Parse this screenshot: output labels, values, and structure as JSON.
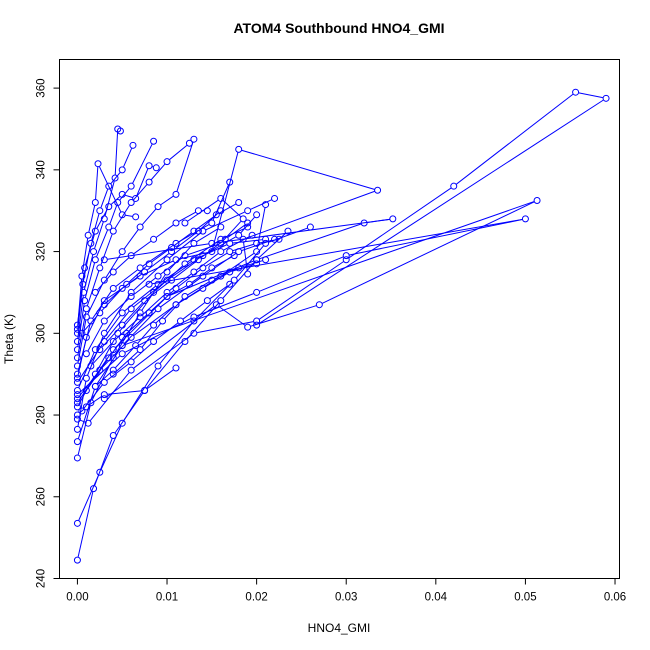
{
  "chart_data": {
    "type": "line",
    "title": "ATOM4 Southbound HNO4_GMI",
    "xlabel": "HNO4_GMI",
    "ylabel": "Theta (K)",
    "xlim": [
      -0.002,
      0.0605
    ],
    "ylim": [
      240,
      367
    ],
    "x_ticks": [
      0.0,
      0.01,
      0.02,
      0.03,
      0.04,
      0.05,
      0.06
    ],
    "x_tick_labels": [
      "0.00",
      "0.01",
      "0.02",
      "0.03",
      "0.04",
      "0.05",
      "0.06"
    ],
    "y_ticks": [
      240,
      260,
      280,
      300,
      320,
      340,
      360
    ],
    "y_tick_labels": [
      "240",
      "260",
      "280",
      "300",
      "320",
      "340",
      "360"
    ],
    "grid": false,
    "legend": "none",
    "colors": {
      "series": "#0000ff",
      "axes": "#000000"
    },
    "series": [
      {
        "values": [
          [
            0.0,
            244.5
          ],
          [
            0.0018,
            262
          ],
          [
            0.004,
            275
          ],
          [
            0.0075,
            286
          ],
          [
            0.012,
            298
          ],
          [
            0.016,
            308
          ],
          [
            0.02,
            318
          ],
          [
            0.0235,
            325
          ]
        ]
      },
      {
        "values": [
          [
            0.0,
            253.5
          ],
          [
            0.0025,
            266
          ],
          [
            0.005,
            278
          ],
          [
            0.009,
            292
          ],
          [
            0.013,
            303
          ],
          [
            0.0175,
            313
          ],
          [
            0.021,
            322
          ],
          [
            0.026,
            326
          ]
        ]
      },
      {
        "values": [
          [
            0.0,
            269.5
          ],
          [
            0.0015,
            283
          ],
          [
            0.004,
            294
          ],
          [
            0.007,
            305
          ],
          [
            0.01,
            315
          ],
          [
            0.013,
            322
          ],
          [
            0.016,
            326
          ]
        ]
      },
      {
        "values": [
          [
            0.0,
            273.5
          ],
          [
            0.002,
            287
          ],
          [
            0.005,
            297
          ],
          [
            0.009,
            306
          ],
          [
            0.014,
            314
          ],
          [
            0.018,
            320
          ],
          [
            0.022,
            323
          ]
        ]
      },
      {
        "values": [
          [
            0.0,
            276.5
          ],
          [
            0.001,
            289
          ],
          [
            0.003,
            300
          ],
          [
            0.006,
            310
          ],
          [
            0.01,
            318
          ],
          [
            0.014,
            325
          ],
          [
            0.019,
            330
          ],
          [
            0.022,
            333
          ]
        ]
      },
      {
        "values": [
          [
            0.0,
            280
          ],
          [
            0.001,
            282
          ],
          [
            0.003,
            285
          ],
          [
            0.0075,
            286
          ],
          [
            0.011,
            291.5
          ]
        ]
      },
      {
        "values": [
          [
            0.0,
            282
          ],
          [
            0.002,
            290
          ],
          [
            0.0045,
            300
          ],
          [
            0.0085,
            310
          ],
          [
            0.012,
            317
          ],
          [
            0.016,
            323
          ],
          [
            0.019,
            326
          ]
        ]
      },
      {
        "values": [
          [
            0.0,
            284
          ],
          [
            0.0025,
            291
          ],
          [
            0.006,
            299
          ],
          [
            0.011,
            307
          ],
          [
            0.016,
            314
          ],
          [
            0.02,
            320
          ],
          [
            0.021,
            331.5
          ]
        ]
      },
      {
        "values": [
          [
            0.0,
            286
          ],
          [
            0.002,
            296
          ],
          [
            0.005,
            305
          ],
          [
            0.009,
            312
          ],
          [
            0.013,
            318
          ],
          [
            0.017,
            322
          ],
          [
            0.021,
            323
          ]
        ]
      },
      {
        "values": [
          [
            0.0,
            288
          ],
          [
            0.003,
            298
          ],
          [
            0.006,
            306
          ],
          [
            0.01,
            313
          ],
          [
            0.014,
            319
          ],
          [
            0.018,
            324
          ],
          [
            0.02,
            329
          ]
        ]
      },
      {
        "values": [
          [
            0.0,
            290
          ],
          [
            0.0015,
            303
          ],
          [
            0.004,
            311
          ],
          [
            0.007,
            316
          ],
          [
            0.011,
            322
          ],
          [
            0.015,
            327
          ],
          [
            0.017,
            337
          ]
        ]
      },
      {
        "values": [
          [
            0.0,
            292
          ],
          [
            0.001,
            304
          ],
          [
            0.003,
            313
          ],
          [
            0.005,
            320
          ],
          [
            0.007,
            326
          ],
          [
            0.009,
            331
          ],
          [
            0.011,
            334
          ],
          [
            0.013,
            347.5
          ]
        ]
      },
      {
        "values": [
          [
            0.0,
            294
          ],
          [
            0.001,
            306
          ],
          [
            0.0025,
            316
          ],
          [
            0.004,
            325
          ],
          [
            0.006,
            332
          ],
          [
            0.008,
            337
          ],
          [
            0.01,
            342
          ],
          [
            0.0125,
            346.5
          ]
        ]
      },
      {
        "values": [
          [
            0.0,
            296
          ],
          [
            0.0008,
            308
          ],
          [
            0.002,
            318
          ],
          [
            0.0035,
            326
          ],
          [
            0.0045,
            332
          ],
          [
            0.006,
            336
          ],
          [
            0.0085,
            347
          ]
        ]
      },
      {
        "values": [
          [
            0.0,
            298
          ],
          [
            0.0007,
            310
          ],
          [
            0.0018,
            320
          ],
          [
            0.003,
            328
          ],
          [
            0.0042,
            338
          ],
          [
            0.0045,
            350
          ],
          [
            0.0048,
            349.5
          ]
        ]
      },
      {
        "values": [
          [
            0.0,
            300
          ],
          [
            0.0006,
            312
          ],
          [
            0.0015,
            322
          ],
          [
            0.0025,
            330
          ],
          [
            0.0035,
            336
          ],
          [
            0.005,
            340
          ],
          [
            0.0062,
            346
          ]
        ]
      },
      {
        "values": [
          [
            0.0,
            301
          ],
          [
            0.0005,
            314
          ],
          [
            0.0012,
            324
          ],
          [
            0.002,
            332
          ],
          [
            0.0023,
            341.5
          ],
          [
            0.005,
            329
          ],
          [
            0.0065,
            328.5
          ]
        ]
      },
      {
        "values": [
          [
            0.0,
            302
          ],
          [
            0.0008,
            316
          ],
          [
            0.002,
            325
          ],
          [
            0.0035,
            331
          ],
          [
            0.005,
            334
          ],
          [
            0.0065,
            333
          ],
          [
            0.008,
            341
          ],
          [
            0.0088,
            340.5
          ]
        ]
      },
      {
        "values": [
          [
            0.0,
            289
          ],
          [
            0.001,
            299
          ],
          [
            0.003,
            308
          ],
          [
            0.007,
            314
          ],
          [
            0.011,
            318
          ],
          [
            0.015,
            320
          ],
          [
            0.018,
            345
          ],
          [
            0.0335,
            335
          ],
          [
            0.0185,
            323
          ],
          [
            0.019,
            314.5
          ]
        ]
      },
      {
        "values": [
          [
            0.0,
            279
          ],
          [
            0.0012,
            278
          ],
          [
            0.006,
            291
          ],
          [
            0.0155,
            307
          ],
          [
            0.019,
            301.5
          ],
          [
            0.027,
            307
          ],
          [
            0.0513,
            332.5
          ],
          [
            0.005,
            297
          ]
        ]
      },
      {
        "values": [
          [
            0.0,
            283
          ],
          [
            0.004,
            296
          ],
          [
            0.01,
            309
          ],
          [
            0.02,
            318
          ],
          [
            0.032,
            327
          ],
          [
            0.0352,
            328
          ],
          [
            0.015,
            322
          ],
          [
            0.003,
            318
          ]
        ]
      },
      {
        "values": [
          [
            0.0,
            285
          ],
          [
            0.005,
            295
          ],
          [
            0.013,
            304
          ],
          [
            0.02,
            310
          ],
          [
            0.03,
            319
          ],
          [
            0.05,
            328
          ],
          [
            0.008,
            312
          ]
        ]
      },
      {
        "values": [
          [
            0.003,
            284
          ],
          [
            0.013,
            300
          ],
          [
            0.02,
            303
          ],
          [
            0.03,
            318
          ],
          [
            0.042,
            336
          ],
          [
            0.0556,
            359
          ],
          [
            0.059,
            357.5
          ],
          [
            0.02,
            302
          ]
        ]
      },
      {
        "values": [
          [
            0.001,
            295
          ],
          [
            0.003,
            303
          ],
          [
            0.006,
            309
          ],
          [
            0.009,
            314
          ],
          [
            0.012,
            319
          ],
          [
            0.016,
            322
          ],
          [
            0.0185,
            328
          ],
          [
            0.016,
            333
          ],
          [
            0.012,
            327
          ]
        ]
      },
      {
        "values": [
          [
            0.002,
            287
          ],
          [
            0.004,
            291
          ],
          [
            0.0065,
            297
          ],
          [
            0.0085,
            302
          ],
          [
            0.011,
            307
          ],
          [
            0.014,
            311
          ],
          [
            0.017,
            315
          ],
          [
            0.02,
            317
          ]
        ]
      },
      {
        "values": [
          [
            0.001,
            286
          ],
          [
            0.0035,
            294
          ],
          [
            0.0055,
            300
          ],
          [
            0.008,
            305
          ],
          [
            0.01,
            309
          ],
          [
            0.0125,
            312
          ],
          [
            0.015,
            316
          ],
          [
            0.0175,
            319
          ]
        ]
      },
      {
        "values": [
          [
            0.0005,
            281
          ],
          [
            0.003,
            288
          ],
          [
            0.006,
            293
          ],
          [
            0.0085,
            298
          ],
          [
            0.0115,
            303
          ],
          [
            0.0145,
            308
          ],
          [
            0.017,
            312
          ]
        ]
      },
      {
        "values": [
          [
            0.0015,
            292
          ],
          [
            0.004,
            298
          ],
          [
            0.007,
            304
          ],
          [
            0.01,
            310
          ],
          [
            0.013,
            315
          ],
          [
            0.016,
            320
          ],
          [
            0.0195,
            324
          ]
        ]
      },
      {
        "values": [
          [
            0.0025,
            296
          ],
          [
            0.005,
            302
          ],
          [
            0.0075,
            308
          ],
          [
            0.0105,
            313
          ],
          [
            0.0135,
            318
          ],
          [
            0.0165,
            323
          ],
          [
            0.019,
            327
          ]
        ]
      },
      {
        "values": [
          [
            0.0005,
            300
          ],
          [
            0.0025,
            305
          ],
          [
            0.005,
            311
          ],
          [
            0.0075,
            315
          ],
          [
            0.0105,
            320
          ],
          [
            0.0135,
            325
          ],
          [
            0.016,
            330
          ]
        ]
      },
      {
        "values": [
          [
            0.004,
            290
          ],
          [
            0.007,
            296
          ],
          [
            0.0095,
            303
          ],
          [
            0.012,
            309
          ],
          [
            0.015,
            313
          ],
          [
            0.018,
            316
          ],
          [
            0.021,
            318
          ]
        ]
      },
      {
        "values": [
          [
            0.005,
            299
          ],
          [
            0.008,
            305
          ],
          [
            0.011,
            311
          ],
          [
            0.014,
            316
          ],
          [
            0.017,
            320
          ],
          [
            0.02,
            322
          ],
          [
            0.0225,
            323
          ]
        ]
      },
      {
        "values": [
          [
            0.003,
            307
          ],
          [
            0.0055,
            312
          ],
          [
            0.008,
            317
          ],
          [
            0.0105,
            321
          ],
          [
            0.013,
            325
          ],
          [
            0.0155,
            329
          ],
          [
            0.018,
            332
          ]
        ]
      },
      {
        "values": [
          [
            0.002,
            310
          ],
          [
            0.004,
            315
          ],
          [
            0.006,
            319
          ],
          [
            0.0085,
            323
          ],
          [
            0.011,
            327
          ],
          [
            0.0135,
            330
          ],
          [
            0.0145,
            330
          ]
        ]
      }
    ]
  }
}
